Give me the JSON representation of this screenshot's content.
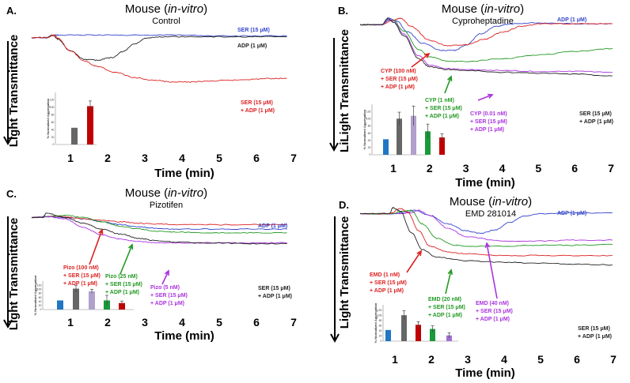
{
  "figure": {
    "colors": {
      "ser": "#3344cc",
      "adp": "#222222",
      "red": "#dd2222",
      "green": "#229922",
      "purple": "#aa33dd",
      "bar_blue": "#1f77c4",
      "bar_gray": "#666666",
      "bar_red": "#c00000",
      "bar_lavender": "#b0a0cc",
      "bar_green": "#1a9a3a",
      "bar_purple": "#a070d0"
    }
  },
  "chart_data": [
    {
      "type": "line",
      "panel": "A.",
      "title": "Mouse (in-vitro)",
      "title_species": "Mouse (",
      "title_italic": "in-vitro",
      "title_close": ")",
      "subtitle": "Control",
      "xlabel": "Time (min)",
      "ylabel": "Light Transmittance",
      "xticks": [
        "1",
        "2",
        "3",
        "4",
        "5",
        "6",
        "7"
      ],
      "xlim": [
        0.3,
        7.2
      ],
      "ylim": [
        0,
        100
      ],
      "series": [
        {
          "name": "SER (15 μM)",
          "color_key": "ser",
          "x": [
            0.3,
            0.7,
            0.8,
            0.9,
            1.0,
            2,
            3,
            4,
            5,
            6,
            7
          ],
          "y": [
            93,
            93,
            95,
            96,
            96,
            96,
            96,
            96,
            95,
            95,
            95
          ]
        },
        {
          "name": "ADP (1 μM)",
          "color_key": "adp",
          "x": [
            0.3,
            0.7,
            0.85,
            1.0,
            1.3,
            1.7,
            2.0,
            2.4,
            2.7,
            3.0,
            3.3,
            3.6,
            4,
            5,
            6,
            7
          ],
          "y": [
            93,
            93,
            96,
            91,
            78,
            68,
            67,
            70,
            77,
            86,
            92,
            94,
            94,
            94,
            94,
            94
          ]
        },
        {
          "name": "SER (15 μM) + ADP (1 μM)",
          "color_key": "red",
          "x": [
            0.3,
            0.7,
            0.9,
            1.0,
            1.3,
            1.7,
            2.0,
            2.5,
            3.0,
            3.5,
            4,
            4.5,
            5,
            5.5,
            6,
            6.5,
            7
          ],
          "y": [
            93,
            93,
            96,
            92,
            78,
            66,
            60,
            53,
            47,
            44,
            42,
            42,
            43,
            44,
            45,
            46,
            46
          ]
        }
      ],
      "labels": [
        {
          "text": "SER (15 μM)",
          "color_key": "ser"
        },
        {
          "text": "ADP (1 μM)",
          "color_key": "adp"
        },
        {
          "text": "SER (15 μM)",
          "color_key": "red"
        },
        {
          "text": "+ ADP (1 μM)",
          "color_key": "red"
        }
      ],
      "inset": {
        "ylabel": "% Normalized Aggregation",
        "yticks": [
          "0",
          "20",
          "40",
          "60",
          "80",
          "100",
          "120"
        ],
        "ylim": [
          0,
          140
        ],
        "values": [
          45,
          103
        ],
        "errors": [
          0,
          14
        ],
        "bar_colors": [
          "bar_gray",
          "bar_red"
        ]
      }
    },
    {
      "type": "line",
      "panel": "B.",
      "title": "Mouse (in-vitro)",
      "title_species": "Mouse (",
      "title_italic": "in-vitro",
      "title_close": ")",
      "subtitle": "Cyproheptadine",
      "xlabel": "Time (min)",
      "ylabel": "LiLight Transmittance",
      "xticks": [
        "1",
        "2",
        "3",
        "4",
        "5",
        "6",
        "7"
      ],
      "xlim": [
        0.1,
        7.2
      ],
      "ylim": [
        0,
        100
      ],
      "series": [
        {
          "name": "ADP (1 μM)",
          "color_key": "ser",
          "x": [
            0.1,
            0.7,
            0.9,
            1.1,
            1.4,
            1.8,
            2.3,
            2.7,
            3.0,
            3.4,
            3.8,
            4.2,
            5,
            6,
            7
          ],
          "y": [
            92,
            92,
            99,
            96,
            84,
            72,
            64,
            64,
            70,
            82,
            90,
            93,
            94,
            93,
            93
          ]
        },
        {
          "name": "CYP (100 nM) + SER (15 μM) + ADP (1 μM)",
          "color_key": "red",
          "x": [
            0.1,
            0.7,
            1.0,
            1.2,
            1.5,
            2.0,
            2.5,
            3.0,
            3.5,
            4.0,
            4.5,
            5,
            6,
            7
          ],
          "y": [
            92,
            92,
            97,
            99,
            90,
            75,
            69,
            70,
            76,
            84,
            90,
            93,
            93,
            93
          ]
        },
        {
          "name": "CYP (1 nM) + SER (15 μM) + ADP (1 μM)",
          "color_key": "green",
          "x": [
            0.1,
            0.7,
            0.9,
            1.0,
            1.3,
            1.7,
            2.0,
            2.5,
            3,
            4,
            5,
            6,
            7
          ],
          "y": [
            92,
            92,
            97,
            97,
            85,
            65,
            57,
            52,
            52,
            55,
            59,
            63,
            66
          ]
        },
        {
          "name": "CYP (0.01 nM) + SER (15 μM) + ADP (1 μM)",
          "color_key": "purple",
          "x": [
            0.1,
            0.7,
            0.9,
            1.0,
            1.3,
            1.7,
            2.0,
            2.5,
            3,
            4,
            5,
            6,
            7
          ],
          "y": [
            92,
            92,
            97,
            96,
            82,
            58,
            48,
            44,
            43,
            42,
            41,
            41,
            40
          ]
        },
        {
          "name": "SER (15 μM) + ADP (1 μM)",
          "color_key": "adp",
          "x": [
            0.1,
            0.7,
            0.85,
            1.0,
            1.3,
            1.7,
            2.0,
            2.5,
            3,
            4,
            5,
            6,
            7
          ],
          "y": [
            92,
            92,
            99,
            95,
            80,
            55,
            46,
            43,
            42,
            40,
            39,
            38,
            36
          ]
        }
      ],
      "labels": [
        {
          "text": "ADP (1 μM)",
          "color_key": "ser"
        },
        {
          "text": "CYP (100 nM)",
          "color_key": "red"
        },
        {
          "text": "+ SER (15 μM)",
          "color_key": "red"
        },
        {
          "text": "+ ADP (1 μM)",
          "color_key": "red"
        },
        {
          "text": "CYP (1 nM)",
          "color_key": "green"
        },
        {
          "text": "+ SER (15 μM)",
          "color_key": "green"
        },
        {
          "text": "+ ADP (1 μM)",
          "color_key": "green"
        },
        {
          "text": "CYP (0.01 nM)",
          "color_key": "purple"
        },
        {
          "text": "+ SER (15 μM)",
          "color_key": "purple"
        },
        {
          "text": "+ ADP (1 μM)",
          "color_key": "purple"
        },
        {
          "text": "SER (15 μM)",
          "color_key": "adp"
        },
        {
          "text": "+ ADP (1 μM)",
          "color_key": "adp"
        }
      ],
      "inset": {
        "ylabel": "% Normalized Aggregation",
        "yticks": [
          "0",
          "20",
          "40",
          "60",
          "80",
          "100",
          "120"
        ],
        "ylim": [
          0,
          140
        ],
        "values": [
          43,
          100,
          108,
          65,
          48
        ],
        "errors": [
          0,
          18,
          27,
          20,
          10
        ],
        "bar_colors": [
          "bar_blue",
          "bar_gray",
          "bar_lavender",
          "bar_green",
          "bar_red"
        ]
      }
    },
    {
      "type": "line",
      "panel": "C.",
      "title": "Mouse (in-vitro)",
      "title_species": "Mouse (",
      "title_italic": "in-vitro",
      "title_close": ")",
      "subtitle": "Pizotifen",
      "xlabel": "Time (min)",
      "ylabel": "Light Transmittance",
      "xticks": [
        "1",
        "2",
        "3",
        "4",
        "5",
        "6",
        "7"
      ],
      "xlim": [
        0.1,
        7.2
      ],
      "ylim": [
        0,
        100
      ],
      "series": [
        {
          "name": "ADP (1 μM)",
          "color_key": "ser",
          "x": [
            0.1,
            0.5,
            1.0,
            1.5,
            2.0,
            2.5,
            3.0,
            3.5,
            4,
            5,
            6,
            7
          ],
          "y": [
            92,
            93,
            92,
            90,
            86,
            82,
            79,
            77,
            76,
            76,
            76,
            76
          ]
        },
        {
          "name": "Pizo (100 nM) + SER (15 μM) + ADP (1 μM)",
          "color_key": "red",
          "x": [
            0.1,
            0.5,
            0.7,
            1.0,
            1.5,
            2.0,
            2.5,
            3.0,
            3.5,
            4,
            5,
            6,
            7
          ],
          "y": [
            92,
            93,
            94,
            93,
            90,
            88,
            86,
            84,
            83,
            82,
            82,
            82,
            82
          ]
        },
        {
          "name": "Pizo (25 nM) + SER (15 μM) + ADP (1 μM)",
          "color_key": "green",
          "x": [
            0.1,
            0.5,
            1.0,
            1.5,
            2.0,
            2.5,
            3.0,
            3.5,
            4,
            5,
            6,
            7
          ],
          "y": [
            92,
            93,
            95,
            92,
            86,
            80,
            76,
            73,
            72,
            71,
            71,
            71
          ]
        },
        {
          "name": "Pizo (5 nM) + SER (15 μM) + ADP (1 μM)",
          "color_key": "purple",
          "x": [
            0.1,
            0.5,
            1.0,
            1.5,
            2.0,
            2.5,
            3.0,
            3.5,
            4,
            5,
            6,
            7
          ],
          "y": [
            92,
            93,
            90,
            78,
            68,
            62,
            59,
            57,
            57,
            57,
            57,
            57
          ]
        },
        {
          "name": "SER (15 μM) + ADP (1 μM)",
          "color_key": "adp",
          "x": [
            0.1,
            0.4,
            0.5,
            1.0,
            1.5,
            2.0,
            2.5,
            3.0,
            3.5,
            4,
            5,
            6,
            7
          ],
          "y": [
            92,
            92,
            98,
            92,
            84,
            76,
            69,
            63,
            60,
            58,
            57,
            56,
            56
          ]
        }
      ],
      "labels": [
        {
          "text": "ADP (1 μM)",
          "color_key": "ser"
        },
        {
          "text": "Pizo (100 nM)",
          "color_key": "red"
        },
        {
          "text": "+ SER (15 μM)",
          "color_key": "red"
        },
        {
          "text": "+ ADP (1 μM)",
          "color_key": "red"
        },
        {
          "text": "Pizo (25 nM)",
          "color_key": "green"
        },
        {
          "text": "+ SER (15 μM)",
          "color_key": "green"
        },
        {
          "text": "+ ADP (1 μM)",
          "color_key": "green"
        },
        {
          "text": "Pizo (5 nM)",
          "color_key": "purple"
        },
        {
          "text": "+ SER (15 μM)",
          "color_key": "purple"
        },
        {
          "text": "+ ADP (1 μM)",
          "color_key": "purple"
        },
        {
          "text": "SER (15 μM)",
          "color_key": "adp"
        },
        {
          "text": "+ ADP (1 μM)",
          "color_key": "adp"
        }
      ],
      "inset": {
        "ylabel": "% Normalized Aggregation",
        "yticks": [
          "0",
          "20",
          "40",
          "60",
          "80",
          "100",
          "120"
        ],
        "ylim": [
          0,
          140
        ],
        "values": [
          45,
          103,
          90,
          45,
          32
        ],
        "errors": [
          0,
          17,
          10,
          25,
          10
        ],
        "bar_colors": [
          "bar_blue",
          "bar_gray",
          "bar_lavender",
          "bar_green",
          "bar_red"
        ]
      }
    },
    {
      "type": "line",
      "panel": "D.",
      "title": "Mouse (in-vitro)",
      "title_species": "Mouse (",
      "title_italic": "in-vitro",
      "title_close": ")",
      "subtitle": "EMD 281014",
      "xlabel": "Time (min)",
      "ylabel": "Light Transmittance",
      "xticks": [
        "1",
        "2",
        "3",
        "4",
        "5",
        "6",
        "7"
      ],
      "xlim": [
        0.1,
        7.2
      ],
      "ylim": [
        0,
        100
      ],
      "series": [
        {
          "name": "ADP (1 μM)",
          "color_key": "ser",
          "x": [
            0.1,
            1.0,
            1.4,
            1.6,
            2.0,
            2.5,
            3.0,
            3.4,
            3.8,
            4.2,
            4.6,
            5,
            6,
            7
          ],
          "y": [
            92,
            92,
            94,
            96,
            90,
            80,
            72,
            69,
            73,
            82,
            89,
            92,
            93,
            93
          ]
        },
        {
          "name": "EMD (40 nM) + SER (15 μM) + ADP (1 μM)",
          "color_key": "purple",
          "x": [
            0.1,
            1.0,
            1.5,
            1.7,
            2.0,
            2.5,
            3,
            4,
            5,
            6,
            7
          ],
          "y": [
            92,
            92,
            93,
            96,
            90,
            75,
            65,
            60,
            60,
            61,
            61
          ]
        },
        {
          "name": "EMD (20 nM) + SER (15 μM) + ADP (1 μM)",
          "color_key": "green",
          "x": [
            0.1,
            0.9,
            1.3,
            1.5,
            1.8,
            2.2,
            2.7,
            3,
            4,
            5,
            6,
            7
          ],
          "y": [
            92,
            92,
            95,
            96,
            80,
            63,
            55,
            54,
            54,
            55,
            55,
            56
          ]
        },
        {
          "name": "EMD (1 nM) + SER (15 μM) + ADP (1 μM)",
          "color_key": "red",
          "x": [
            0.1,
            0.9,
            1.2,
            1.4,
            1.7,
            2.0,
            2.5,
            3,
            4,
            5,
            6,
            7
          ],
          "y": [
            92,
            92,
            98,
            94,
            72,
            54,
            47,
            45,
            43,
            43,
            43,
            43
          ]
        },
        {
          "name": "SER (15 μM) + ADP (1 μM)",
          "color_key": "adp",
          "x": [
            0.1,
            0.9,
            1.0,
            1.2,
            1.5,
            1.8,
            2.2,
            3,
            4,
            5,
            6,
            7
          ],
          "y": [
            92,
            92,
            99,
            95,
            70,
            50,
            41,
            37,
            35,
            34,
            33,
            32
          ]
        }
      ],
      "labels": [
        {
          "text": "ADP (1 μM)",
          "color_key": "ser"
        },
        {
          "text": "EMD (1 nM)",
          "color_key": "red"
        },
        {
          "text": "+ SER (15 μM)",
          "color_key": "red"
        },
        {
          "text": "+ ADP (1 μM)",
          "color_key": "red"
        },
        {
          "text": "EMD (20 nM)",
          "color_key": "green"
        },
        {
          "text": "+ SER (15 μM)",
          "color_key": "green"
        },
        {
          "text": "+ ADP (1 μM)",
          "color_key": "green"
        },
        {
          "text": "EMD (40 nM)",
          "color_key": "purple"
        },
        {
          "text": "+ SER (15 μM)",
          "color_key": "purple"
        },
        {
          "text": "+ ADP (1 μM)",
          "color_key": "purple"
        },
        {
          "text": "SER (15 μM)",
          "color_key": "adp"
        },
        {
          "text": "+ ADP (1 μM)",
          "color_key": "adp"
        }
      ],
      "inset": {
        "ylabel": "% Normalized Aggregation",
        "yticks": [
          "0",
          "20",
          "40",
          "60",
          "80",
          "100",
          "120"
        ],
        "ylim": [
          0,
          140
        ],
        "values": [
          43,
          100,
          63,
          47,
          22
        ],
        "errors": [
          0,
          18,
          12,
          12,
          10
        ],
        "bar_colors": [
          "bar_blue",
          "bar_gray",
          "bar_red",
          "bar_green",
          "bar_purple"
        ]
      }
    }
  ]
}
